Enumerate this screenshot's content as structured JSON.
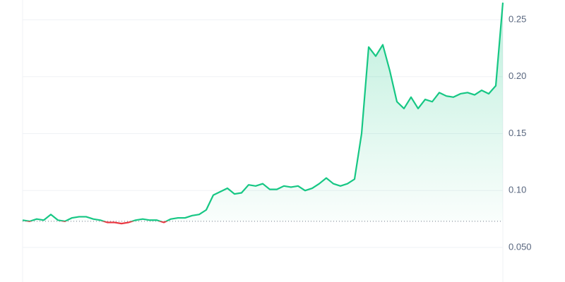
{
  "chart_data": {
    "type": "line",
    "values": [
      0.074,
      0.073,
      0.075,
      0.074,
      0.079,
      0.074,
      0.073,
      0.076,
      0.077,
      0.077,
      0.075,
      0.074,
      0.072,
      0.072,
      0.071,
      0.072,
      0.074,
      0.075,
      0.074,
      0.074,
      0.072,
      0.075,
      0.076,
      0.076,
      0.078,
      0.079,
      0.083,
      0.096,
      0.099,
      0.102,
      0.097,
      0.098,
      0.105,
      0.104,
      0.106,
      0.101,
      0.101,
      0.104,
      0.103,
      0.104,
      0.1,
      0.102,
      0.106,
      0.111,
      0.106,
      0.104,
      0.106,
      0.11,
      0.15,
      0.226,
      0.218,
      0.228,
      0.205,
      0.178,
      0.172,
      0.182,
      0.172,
      0.18,
      0.178,
      0.186,
      0.183,
      0.182,
      0.185,
      0.186,
      0.184,
      0.188,
      0.185,
      0.192,
      0.265
    ],
    "baseline": 0.073,
    "up_color": "#16c784",
    "down_color": "#ea3943",
    "ylim": [
      0.0197,
      0.2673
    ],
    "yticks": [
      {
        "value": 0.05,
        "label": "0.050"
      },
      {
        "value": 0.1,
        "label": "0.10"
      },
      0.15,
      {
        "value": 0.2,
        "label": "0.20"
      },
      0.25
    ],
    "grid": true
  }
}
